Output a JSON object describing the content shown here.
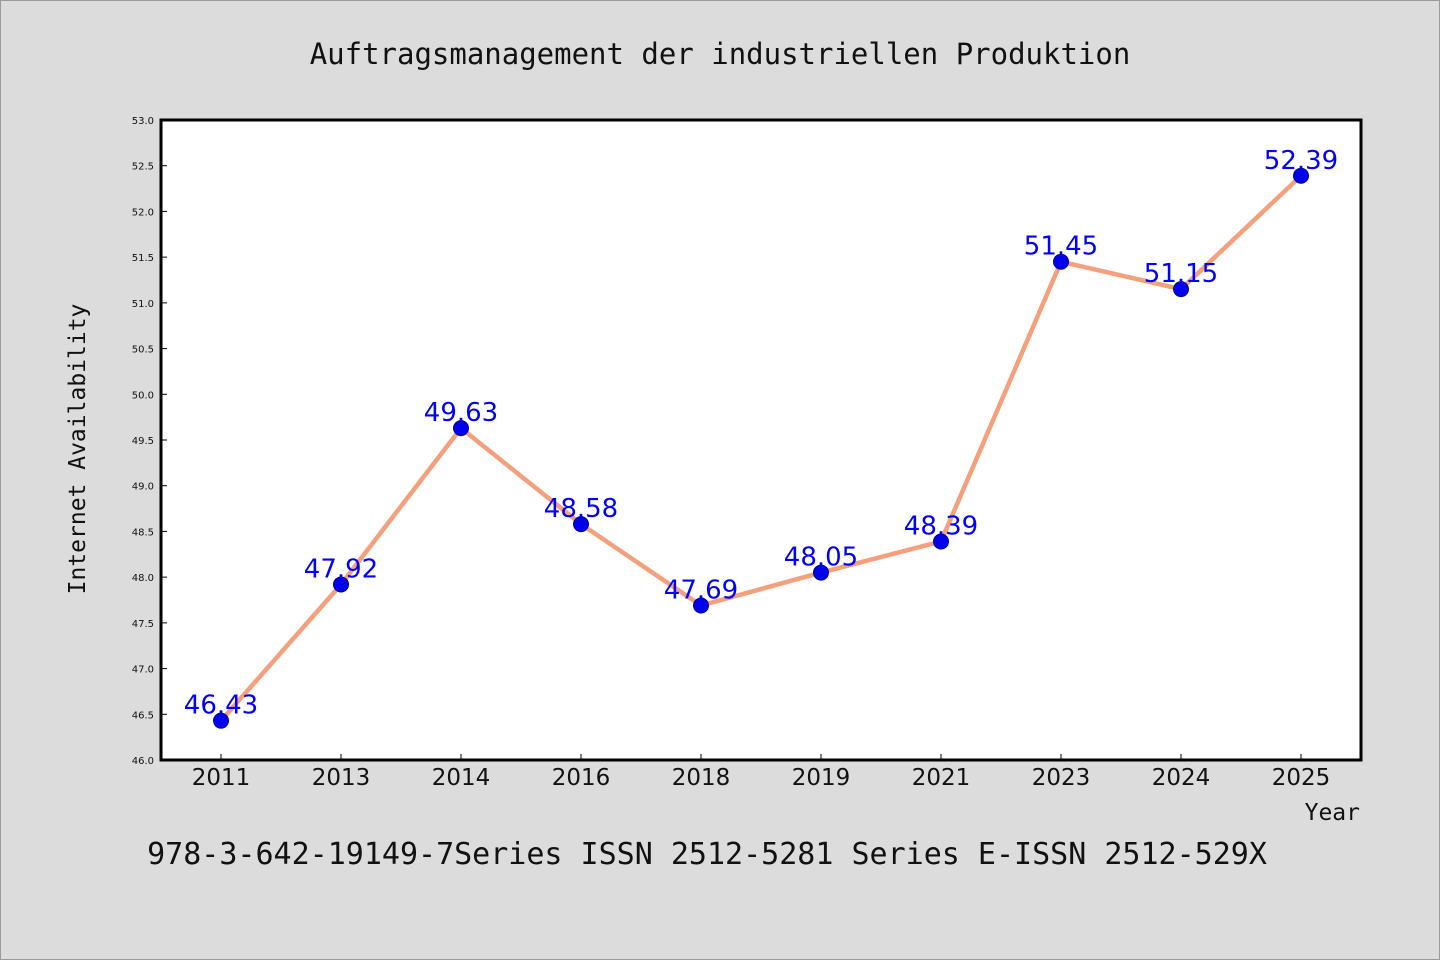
{
  "chart_data": {
    "type": "line",
    "title": "Auftragsmanagement der industriellen Produktion",
    "xlabel": "Year",
    "ylabel": "Internet Availability",
    "categories": [
      "2011",
      "2013",
      "2014",
      "2016",
      "2018",
      "2019",
      "2021",
      "2023",
      "2024",
      "2025"
    ],
    "values": [
      46.43,
      47.92,
      49.63,
      48.58,
      47.69,
      48.05,
      48.39,
      51.45,
      51.15,
      52.39
    ],
    "data_labels": [
      "46.43",
      "47.92",
      "49.63",
      "48.58",
      "47.69",
      "48.05",
      "48.39",
      "51.45",
      "51.15",
      "52.39"
    ],
    "ylim": [
      46.0,
      53.0
    ],
    "yticks": [
      "46.0",
      "46.5",
      "47.0",
      "47.5",
      "48.0",
      "48.5",
      "49.0",
      "49.5",
      "50.0",
      "50.5",
      "51.0",
      "51.5",
      "52.0",
      "52.5",
      "53.0"
    ],
    "grid": false,
    "line_color": "#f4a07c",
    "marker_color": "#0000ee",
    "label_color": "#0000ff",
    "plot_background": "#ffffff",
    "page_background": "#dcdcdc"
  },
  "footer": "978-3-642-19149-7Series ISSN 2512-5281 Series E-ISSN 2512-529X"
}
